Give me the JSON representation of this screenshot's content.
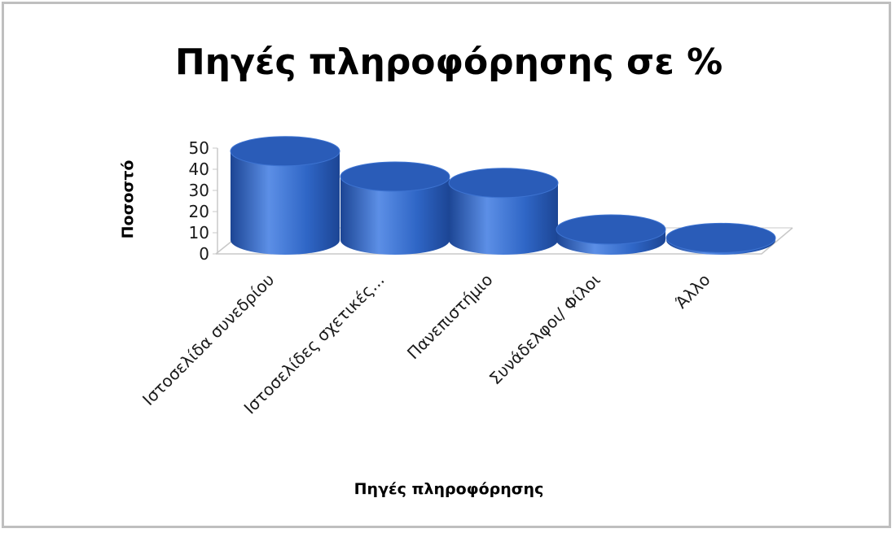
{
  "chart_data": {
    "type": "bar",
    "title": "Πηγές πληροφόρησης σε %",
    "xlabel": "Πηγές πληροφόρησης",
    "ylabel": "Ποσοστό",
    "categories": [
      "Ιστοσελίδα συνεδρίου",
      "Ιστοσελίδες σχετικές...",
      "Πανεπιστήμιο",
      "Συνάδελφοι/ Φίλοι",
      "Άλλο"
    ],
    "values": [
      42,
      30,
      27,
      5,
      1
    ],
    "ylim": [
      0,
      50
    ],
    "yticks": [
      "0",
      "10",
      "20",
      "30",
      "40",
      "50"
    ],
    "grid": false,
    "legend": "none",
    "bar_shape": "3d-cylinder",
    "colors": {
      "bar": "#2f66c6",
      "bar_dark": "#1c4594",
      "bar_light": "#5c8fe6",
      "top": "#2a5cb8",
      "axis": "#c8c8c8"
    }
  }
}
